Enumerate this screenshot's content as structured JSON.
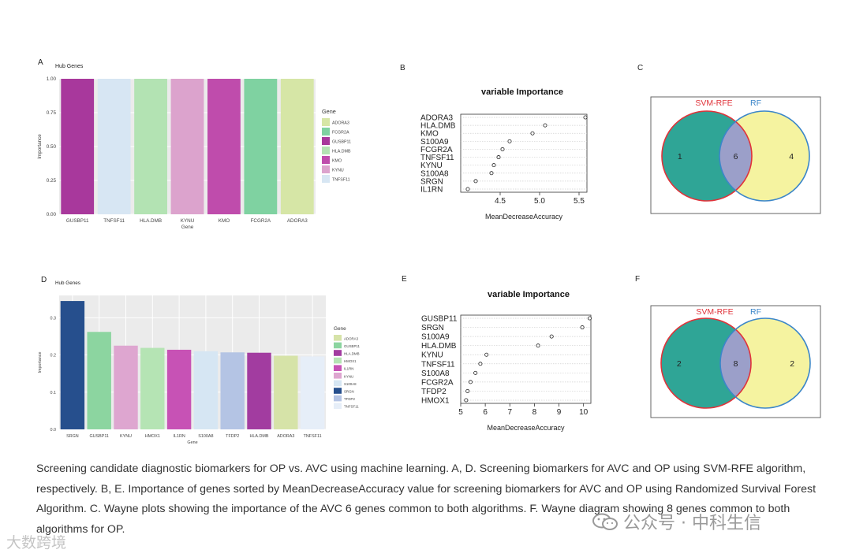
{
  "chart_data": [
    {
      "panel": "A",
      "type": "bar",
      "title": "Hub Genes",
      "xlabel": "Gene",
      "ylabel": "Importance",
      "ylim": [
        0,
        1.0
      ],
      "yticks": [
        "0.00",
        "0.25",
        "0.50",
        "0.75",
        "1.00"
      ],
      "categories": [
        "GUSBP11",
        "TNFSF11",
        "HLA.DMB",
        "KYNU",
        "KMO",
        "FCGR2A",
        "ADORA3"
      ],
      "values": [
        1.0,
        1.0,
        1.0,
        1.0,
        1.0,
        1.0,
        1.0
      ],
      "colors": [
        "#a8389c",
        "#d7e6f3",
        "#b3e3b3",
        "#dca3cd",
        "#bf4cac",
        "#7fd2a1",
        "#d6e6a6"
      ],
      "legend_title": "Gene",
      "legend": [
        "ADORA3",
        "FCGR2A",
        "GUSBP11",
        "HLA.DMB",
        "KMO",
        "KYNU",
        "TNFSF11"
      ],
      "legend_colors": [
        "#d6e6a6",
        "#7fd2a1",
        "#a8389c",
        "#b3e3b3",
        "#bf4cac",
        "#dca3cd",
        "#d7e6f3"
      ]
    },
    {
      "panel": "B",
      "type": "scatter",
      "title": "variable Importance",
      "xlabel": "MeanDecreaseAccuracy",
      "xlim": [
        4.0,
        5.6
      ],
      "xticks": [
        "4.5",
        "5.0",
        "5.5"
      ],
      "categories": [
        "ADORA3",
        "HLA.DMB",
        "KMO",
        "S100A9",
        "FCGR2A",
        "TNFSF11",
        "KYNU",
        "S100A8",
        "SRGN",
        "IL1RN"
      ],
      "values": [
        5.58,
        5.07,
        4.91,
        4.62,
        4.53,
        4.48,
        4.42,
        4.39,
        4.19,
        4.09
      ]
    },
    {
      "panel": "C",
      "type": "venn",
      "left_label": "SVM-RFE",
      "right_label": "RF",
      "left_only": "1",
      "intersection": "6",
      "right_only": "4",
      "left_color": "#2fa596",
      "right_color": "#f5f3a0"
    },
    {
      "panel": "D",
      "type": "bar",
      "title": "Hub Genes",
      "xlabel": "Gene",
      "ylabel": "Importance",
      "ylim": [
        0,
        0.36
      ],
      "yticks": [
        "0.0",
        "0.1",
        "0.2",
        "0.3"
      ],
      "categories": [
        "SRGN",
        "GUSBP11",
        "KYNU",
        "HMOX1",
        "IL1RN",
        "S100A8",
        "TFDP2",
        "HLA.DMB",
        "ADORA3",
        "TNFSF11"
      ],
      "values": [
        0.345,
        0.262,
        0.225,
        0.219,
        0.214,
        0.21,
        0.207,
        0.206,
        0.198,
        0.196
      ],
      "colors": [
        "#264f8d",
        "#8cd5a0",
        "#dea6d0",
        "#b5e4b4",
        "#c752b5",
        "#d6e6f3",
        "#b4c4e4",
        "#a23ca0",
        "#d6e3a8",
        "#e6eef8"
      ],
      "legend_title": "Gene",
      "legend": [
        "ADORA3",
        "GUSBP11",
        "HLA.DMB",
        "HMOX1",
        "IL1RN",
        "KYNU",
        "S100A8",
        "SRGN",
        "TFDP2",
        "TNFSF11"
      ],
      "legend_colors": [
        "#d6e3a8",
        "#8cd5a0",
        "#a23ca0",
        "#b5e4b4",
        "#c752b5",
        "#dea6d0",
        "#d6e6f3",
        "#264f8d",
        "#b4c4e4",
        "#e6eef8"
      ]
    },
    {
      "panel": "E",
      "type": "scatter",
      "title": "variable Importance",
      "xlabel": "MeanDecreaseAccuracy",
      "xlim": [
        5,
        10.3
      ],
      "xticks": [
        "5",
        "6",
        "7",
        "8",
        "9",
        "10"
      ],
      "categories": [
        "GUSBP11",
        "SRGN",
        "S100A9",
        "HLA.DMB",
        "KYNU",
        "TNFSF11",
        "S100A8",
        "FCGR2A",
        "TFDP2",
        "HMOX1"
      ],
      "values": [
        10.25,
        9.95,
        8.7,
        8.15,
        6.05,
        5.8,
        5.6,
        5.4,
        5.28,
        5.22
      ]
    },
    {
      "panel": "F",
      "type": "venn",
      "left_label": "SVM-RFE",
      "right_label": "RF",
      "left_only": "2",
      "intersection": "8",
      "right_only": "2",
      "left_color": "#2fa596",
      "right_color": "#f5f3a0"
    }
  ],
  "caption": "Screening candidate diagnostic biomarkers for OP vs. AVC using machine learning. A, D. Screening biomarkers for AVC and OP using SVM-RFE algorithm, respectively. B, E. Importance of genes sorted by MeanDecreaseAccuracy value for screening biomarkers for AVC and OP using Randomized Survival Forest Algorithm. C. Wayne plots showing the importance of the AVC 6 genes common to both algorithms. F. Wayne diagram showing 8 genes common to both algorithms for OP.",
  "watermark": "公众号 · 中科生信",
  "watermark2": "大数跨境"
}
